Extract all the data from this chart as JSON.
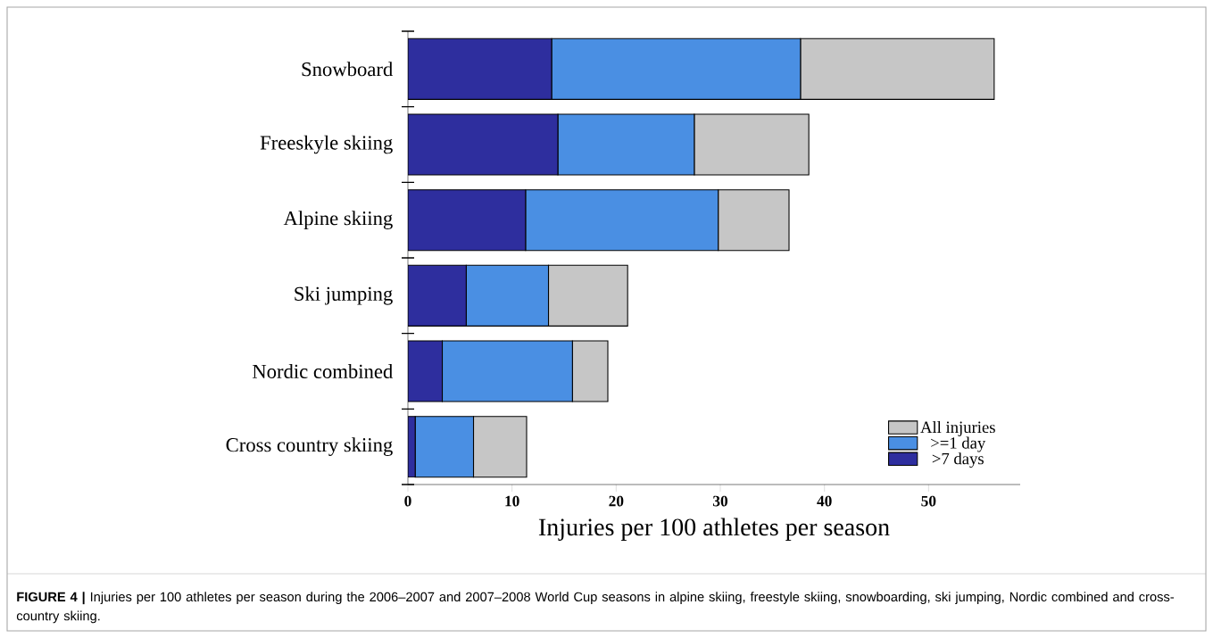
{
  "chart_data": {
    "type": "bar",
    "orientation": "horizontal",
    "stacked": true,
    "categories": [
      "Snowboard",
      "Freeskyle skiing",
      "Alpine skiing",
      "Ski jumping",
      "Nordic combined",
      "Cross country skiing"
    ],
    "series": [
      {
        "name": ">7 days",
        "color": "#2e2e9e",
        "values": [
          13.8,
          14.4,
          11.3,
          5.6,
          3.3,
          0.7
        ]
      },
      {
        "name": ">=1 day",
        "color": "#4a8fe3",
        "values": [
          23.9,
          13.1,
          18.5,
          7.9,
          12.5,
          5.6
        ]
      },
      {
        "name": "All injuries",
        "color": "#c6c6c6",
        "values": [
          18.6,
          11.0,
          6.8,
          7.6,
          3.4,
          5.1
        ]
      }
    ],
    "xlim": [
      0,
      58.8
    ],
    "xticks": [
      0,
      10,
      20,
      30,
      40,
      50
    ],
    "xlabel": "Injuries per 100 athletes per season",
    "legend": "bottom right",
    "grid": false,
    "annotations": [
      "**FIGURE 4 |** Injuries per 100 athletes per season during the 2006–2007 and 2007–2008 World Cup seasons in alpine skiing, freestyle skiing, snowboarding, ski jumping, Nordic combined and cross-country skiing."
    ]
  }
}
